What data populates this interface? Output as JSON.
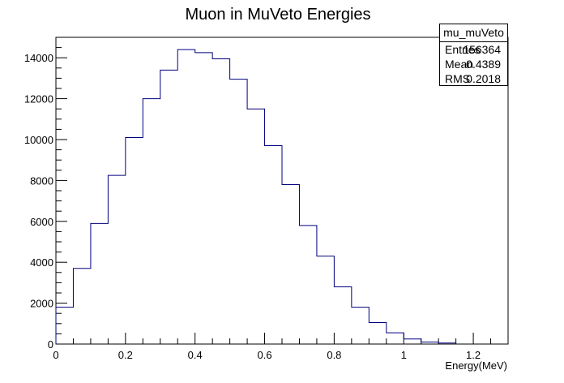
{
  "chart_data": {
    "type": "bar",
    "style": "step-histogram",
    "title": "Muon in MuVeto Energies",
    "xlabel": "Energy(MeV)",
    "ylabel": "",
    "xlim": [
      0,
      1.3
    ],
    "ylim": [
      0,
      15000
    ],
    "x_ticks": [
      "0",
      "0.2",
      "0.4",
      "0.6",
      "0.8",
      "1",
      "1.2"
    ],
    "y_ticks": [
      "0",
      "2000",
      "4000",
      "6000",
      "8000",
      "10000",
      "12000",
      "14000"
    ],
    "bin_edges": [
      0,
      0.05,
      0.1,
      0.15,
      0.2,
      0.25,
      0.3,
      0.35,
      0.4,
      0.45,
      0.5,
      0.55,
      0.6,
      0.65,
      0.7,
      0.75,
      0.8,
      0.85,
      0.9,
      0.95,
      1.0,
      1.05,
      1.1,
      1.15
    ],
    "values": [
      1800,
      3700,
      5900,
      8250,
      10100,
      12000,
      13400,
      14400,
      14250,
      13950,
      12950,
      11500,
      9700,
      7800,
      5800,
      4300,
      2800,
      1800,
      1050,
      550,
      250,
      100,
      50
    ],
    "line_color": "#00007f",
    "grid": false,
    "legend": "none",
    "stats": {
      "name": "mu_muVeto",
      "entries_label": "Entries",
      "entries": "156364",
      "mean_label": "Mean",
      "mean": "0.4389",
      "rms_label": "RMS",
      "rms": "0.2018",
      "placement": "top-right"
    }
  }
}
